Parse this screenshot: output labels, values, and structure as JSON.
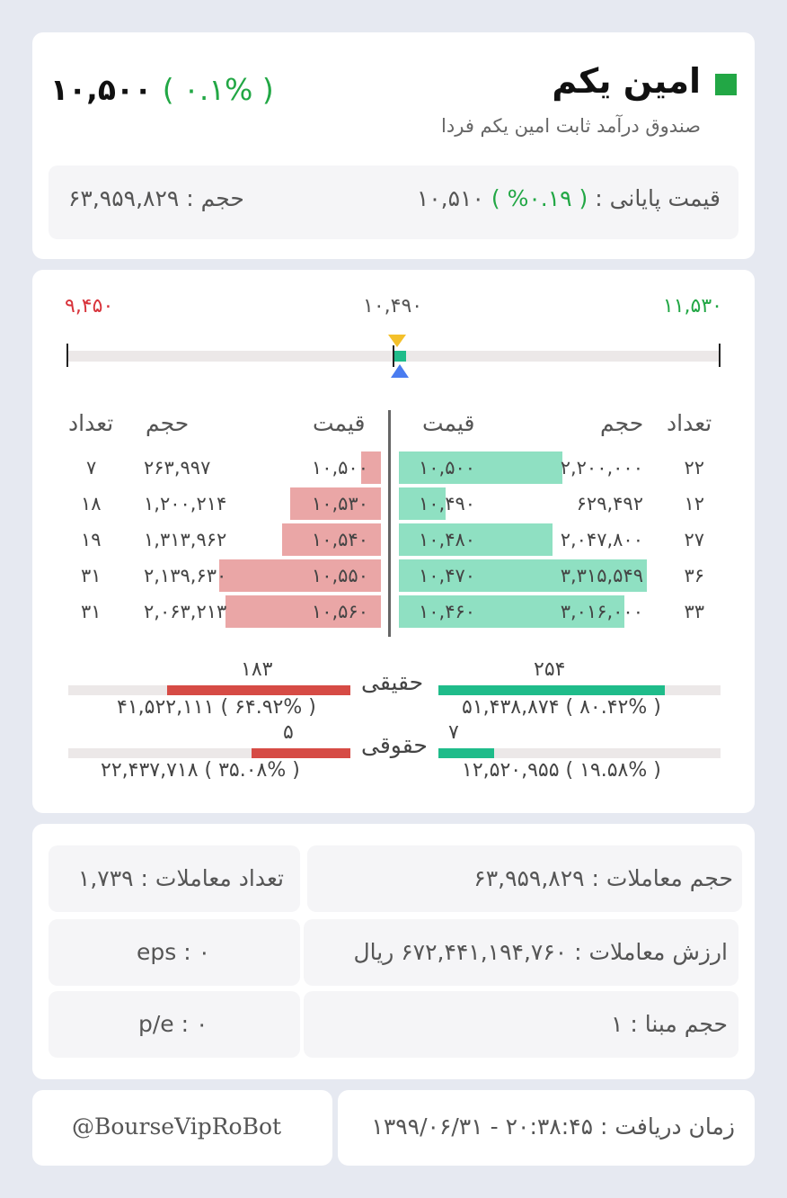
{
  "header": {
    "name": "امین یکم",
    "subtitle": "صندوق درآمد ثابت امین یکم فردا",
    "last_price": "۱۰,۵۰۰",
    "last_change": "( ۰.۱% )",
    "closing_label": "قیمت پایانی : ",
    "closing_change": "( ۰.۱۹% )",
    "closing_price": "۱۰,۵۱۰",
    "volume_text": "حجم : ۶۳,۹۵۹,۸۲۹",
    "status_color": "#22a745"
  },
  "range": {
    "min_label": "۹,۴۵۰",
    "mid_label": "۱۰,۴۹۰",
    "max_label": "۱۱,۵۳۰",
    "min": 9450,
    "max": 11530,
    "yesterday_marker": 10490,
    "last_marker": 10500
  },
  "orderbook": {
    "headers": {
      "count": "تعداد",
      "volume": "حجم",
      "price": "قیمت"
    },
    "buy_rows": [
      {
        "count": "۲۲",
        "volume": "۲,۲۰۰,۰۰۰",
        "price": "۱۰,۵۰۰",
        "fill": 0.66
      },
      {
        "count": "۱۲",
        "volume": "۶۲۹,۴۹۲",
        "price": "۱۰,۴۹۰",
        "fill": 0.19
      },
      {
        "count": "۲۷",
        "volume": "۲,۰۴۷,۸۰۰",
        "price": "۱۰,۴۸۰",
        "fill": 0.62
      },
      {
        "count": "۳۶",
        "volume": "۳,۳۱۵,۵۴۹",
        "price": "۱۰,۴۷۰",
        "fill": 1.0
      },
      {
        "count": "۳۳",
        "volume": "۳,۰۱۶,۰۰۰",
        "price": "۱۰,۴۶۰",
        "fill": 0.91
      }
    ],
    "sell_rows": [
      {
        "count": "۷",
        "volume": "۲۶۳,۹۹۷",
        "price": "۱۰,۵۰۰",
        "fill": 0.12
      },
      {
        "count": "۱۸",
        "volume": "۱,۲۰۰,۲۱۴",
        "price": "۱۰,۵۳۰",
        "fill": 0.56
      },
      {
        "count": "۱۹",
        "volume": "۱,۳۱۳,۹۶۲",
        "price": "۱۰,۵۴۰",
        "fill": 0.61
      },
      {
        "count": "۳۱",
        "volume": "۲,۱۳۹,۶۳۰",
        "price": "۱۰,۵۵۰",
        "fill": 1.0
      },
      {
        "count": "۳۱",
        "volume": "۲,۰۶۳,۲۱۳",
        "price": "۱۰,۵۶۰",
        "fill": 0.96
      }
    ]
  },
  "clients": {
    "real": {
      "label": "حقیقی",
      "buy_count": "۲۵۴",
      "buy_text": "۵۱,۴۳۸,۸۷۴ ( ۸۰.۴۲% )",
      "buy_share": 0.804,
      "sell_count": "۱۸۳",
      "sell_text": "۴۱,۵۲۲,۱۱۱ ( ۶۴.۹۲% )",
      "sell_share": 0.649
    },
    "legal": {
      "label": "حقوقی",
      "buy_count": "۷",
      "buy_text": "۱۲,۵۲۰,۹۵۵ ( ۱۹.۵۸% )",
      "buy_share": 0.196,
      "sell_count": "۵",
      "sell_text": "۲۲,۴۳۷,۷۱۸ ( ۳۵.۰۸% )",
      "sell_share": 0.351
    }
  },
  "stats": {
    "trade_volume": "حجم معاملات : ۶۳,۹۵۹,۸۲۹",
    "trade_count": "تعداد معاملات : ۱,۷۳۹",
    "trade_value": "ارزش معاملات : ۶۷۲,۴۴۱,۱۹۴,۷۶۰ ریال",
    "eps": "eps : ۰",
    "base_volume": "حجم مبنا : ۱",
    "pe": "p/e : ۰"
  },
  "footer": {
    "received_time": "زمان دریافت : ۲۰:۳۸:۴۵ - ۱۳۹۹/۰۶/۳۱",
    "handle": "@BourseVipRoBot"
  }
}
